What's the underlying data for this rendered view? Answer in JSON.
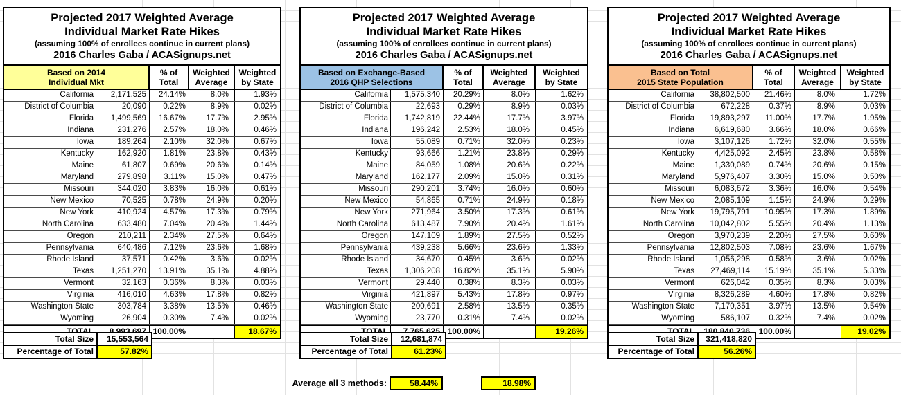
{
  "shared": {
    "title_line1": "Projected 2017 Weighted Average",
    "title_line2": "Individual Market Rate Hikes",
    "title_line3": "(assuming 100% of enrollees continue in current plans)",
    "title_line4": "2016 Charles Gaba / ACASignups.net",
    "col_pct_1": "% of",
    "col_pct_2": "Total",
    "col_wavg_1": "Weighted",
    "col_wavg_2": "Average",
    "col_wstate_1": "Weighted",
    "col_wstate_2": "by State",
    "total_label": "TOTAL",
    "total_size_label": "Total Size",
    "pct_of_total_label": "Percentage of Total",
    "colors": {
      "table1_header_bg": "#FFFF99",
      "table2_header_bg": "#9CC2E5",
      "table3_header_bg": "#FAC090",
      "highlight": "#FFFF00"
    }
  },
  "tables": [
    {
      "method_line1": "Based on 2014",
      "method_line2": "Individual Mkt",
      "rows": [
        {
          "state": "California",
          "size": "2,171,525",
          "pct": "24.14%",
          "wavg": "8.0%",
          "wstate": "1.93%"
        },
        {
          "state": "District of Columbia",
          "size": "20,090",
          "pct": "0.22%",
          "wavg": "8.9%",
          "wstate": "0.02%"
        },
        {
          "state": "Florida",
          "size": "1,499,569",
          "pct": "16.67%",
          "wavg": "17.7%",
          "wstate": "2.95%"
        },
        {
          "state": "Indiana",
          "size": "231,276",
          "pct": "2.57%",
          "wavg": "18.0%",
          "wstate": "0.46%"
        },
        {
          "state": "Iowa",
          "size": "189,264",
          "pct": "2.10%",
          "wavg": "32.0%",
          "wstate": "0.67%"
        },
        {
          "state": "Kentucky",
          "size": "162,920",
          "pct": "1.81%",
          "wavg": "23.8%",
          "wstate": "0.43%"
        },
        {
          "state": "Maine",
          "size": "61,807",
          "pct": "0.69%",
          "wavg": "20.6%",
          "wstate": "0.14%"
        },
        {
          "state": "Maryland",
          "size": "279,898",
          "pct": "3.11%",
          "wavg": "15.0%",
          "wstate": "0.47%"
        },
        {
          "state": "Missouri",
          "size": "344,020",
          "pct": "3.83%",
          "wavg": "16.0%",
          "wstate": "0.61%"
        },
        {
          "state": "New Mexico",
          "size": "70,525",
          "pct": "0.78%",
          "wavg": "24.9%",
          "wstate": "0.20%"
        },
        {
          "state": "New York",
          "size": "410,924",
          "pct": "4.57%",
          "wavg": "17.3%",
          "wstate": "0.79%"
        },
        {
          "state": "North Carolina",
          "size": "633,480",
          "pct": "7.04%",
          "wavg": "20.4%",
          "wstate": "1.44%"
        },
        {
          "state": "Oregon",
          "size": "210,211",
          "pct": "2.34%",
          "wavg": "27.5%",
          "wstate": "0.64%"
        },
        {
          "state": "Pennsylvania",
          "size": "640,486",
          "pct": "7.12%",
          "wavg": "23.6%",
          "wstate": "1.68%"
        },
        {
          "state": "Rhode Island",
          "size": "37,571",
          "pct": "0.42%",
          "wavg": "3.6%",
          "wstate": "0.02%"
        },
        {
          "state": "Texas",
          "size": "1,251,270",
          "pct": "13.91%",
          "wavg": "35.1%",
          "wstate": "4.88%"
        },
        {
          "state": "Vermont",
          "size": "32,163",
          "pct": "0.36%",
          "wavg": "8.3%",
          "wstate": "0.03%"
        },
        {
          "state": "Virginia",
          "size": "416,010",
          "pct": "4.63%",
          "wavg": "17.8%",
          "wstate": "0.82%"
        },
        {
          "state": "Washington State",
          "size": "303,784",
          "pct": "3.38%",
          "wavg": "13.5%",
          "wstate": "0.46%"
        },
        {
          "state": "Wyoming",
          "size": "26,904",
          "pct": "0.30%",
          "wavg": "7.4%",
          "wstate": "0.02%"
        }
      ],
      "total": {
        "size": "8,993,697",
        "pct": "100.00%",
        "wstate": "18.67%"
      },
      "footer": {
        "total_size": "15,553,564",
        "pct_of_total": "57.82%"
      }
    },
    {
      "method_line1": "Based on Exchange-Based",
      "method_line2": "2016 QHP Selections",
      "rows": [
        {
          "state": "California",
          "size": "1,575,340",
          "pct": "20.29%",
          "wavg": "8.0%",
          "wstate": "1.62%"
        },
        {
          "state": "District of Columbia",
          "size": "22,693",
          "pct": "0.29%",
          "wavg": "8.9%",
          "wstate": "0.03%"
        },
        {
          "state": "Florida",
          "size": "1,742,819",
          "pct": "22.44%",
          "wavg": "17.7%",
          "wstate": "3.97%"
        },
        {
          "state": "Indiana",
          "size": "196,242",
          "pct": "2.53%",
          "wavg": "18.0%",
          "wstate": "0.45%"
        },
        {
          "state": "Iowa",
          "size": "55,089",
          "pct": "0.71%",
          "wavg": "32.0%",
          "wstate": "0.23%"
        },
        {
          "state": "Kentucky",
          "size": "93,666",
          "pct": "1.21%",
          "wavg": "23.8%",
          "wstate": "0.29%"
        },
        {
          "state": "Maine",
          "size": "84,059",
          "pct": "1.08%",
          "wavg": "20.6%",
          "wstate": "0.22%"
        },
        {
          "state": "Maryland",
          "size": "162,177",
          "pct": "2.09%",
          "wavg": "15.0%",
          "wstate": "0.31%"
        },
        {
          "state": "Missouri",
          "size": "290,201",
          "pct": "3.74%",
          "wavg": "16.0%",
          "wstate": "0.60%"
        },
        {
          "state": "New Mexico",
          "size": "54,865",
          "pct": "0.71%",
          "wavg": "24.9%",
          "wstate": "0.18%"
        },
        {
          "state": "New York",
          "size": "271,964",
          "pct": "3.50%",
          "wavg": "17.3%",
          "wstate": "0.61%"
        },
        {
          "state": "North Carolina",
          "size": "613,487",
          "pct": "7.90%",
          "wavg": "20.4%",
          "wstate": "1.61%"
        },
        {
          "state": "Oregon",
          "size": "147,109",
          "pct": "1.89%",
          "wavg": "27.5%",
          "wstate": "0.52%"
        },
        {
          "state": "Pennsylvania",
          "size": "439,238",
          "pct": "5.66%",
          "wavg": "23.6%",
          "wstate": "1.33%"
        },
        {
          "state": "Rhode Island",
          "size": "34,670",
          "pct": "0.45%",
          "wavg": "3.6%",
          "wstate": "0.02%"
        },
        {
          "state": "Texas",
          "size": "1,306,208",
          "pct": "16.82%",
          "wavg": "35.1%",
          "wstate": "5.90%"
        },
        {
          "state": "Vermont",
          "size": "29,440",
          "pct": "0.38%",
          "wavg": "8.3%",
          "wstate": "0.03%"
        },
        {
          "state": "Virginia",
          "size": "421,897",
          "pct": "5.43%",
          "wavg": "17.8%",
          "wstate": "0.97%"
        },
        {
          "state": "Washington State",
          "size": "200,691",
          "pct": "2.58%",
          "wavg": "13.5%",
          "wstate": "0.35%"
        },
        {
          "state": "Wyoming",
          "size": "23,770",
          "pct": "0.31%",
          "wavg": "7.4%",
          "wstate": "0.02%"
        }
      ],
      "total": {
        "size": "7,765,625",
        "pct": "100.00%",
        "wstate": "19.26%"
      },
      "footer": {
        "total_size": "12,681,874",
        "pct_of_total": "61.23%"
      }
    },
    {
      "method_line1": "Based on Total",
      "method_line2": "2015 State Population",
      "rows": [
        {
          "state": "California",
          "size": "38,802,500",
          "pct": "21.46%",
          "wavg": "8.0%",
          "wstate": "1.72%"
        },
        {
          "state": "District of Columbia",
          "size": "672,228",
          "pct": "0.37%",
          "wavg": "8.9%",
          "wstate": "0.03%"
        },
        {
          "state": "Florida",
          "size": "19,893,297",
          "pct": "11.00%",
          "wavg": "17.7%",
          "wstate": "1.95%"
        },
        {
          "state": "Indiana",
          "size": "6,619,680",
          "pct": "3.66%",
          "wavg": "18.0%",
          "wstate": "0.66%"
        },
        {
          "state": "Iowa",
          "size": "3,107,126",
          "pct": "1.72%",
          "wavg": "32.0%",
          "wstate": "0.55%"
        },
        {
          "state": "Kentucky",
          "size": "4,425,092",
          "pct": "2.45%",
          "wavg": "23.8%",
          "wstate": "0.58%"
        },
        {
          "state": "Maine",
          "size": "1,330,089",
          "pct": "0.74%",
          "wavg": "20.6%",
          "wstate": "0.15%"
        },
        {
          "state": "Maryland",
          "size": "5,976,407",
          "pct": "3.30%",
          "wavg": "15.0%",
          "wstate": "0.50%"
        },
        {
          "state": "Missouri",
          "size": "6,083,672",
          "pct": "3.36%",
          "wavg": "16.0%",
          "wstate": "0.54%"
        },
        {
          "state": "New Mexico",
          "size": "2,085,109",
          "pct": "1.15%",
          "wavg": "24.9%",
          "wstate": "0.29%"
        },
        {
          "state": "New York",
          "size": "19,795,791",
          "pct": "10.95%",
          "wavg": "17.3%",
          "wstate": "1.89%"
        },
        {
          "state": "North Carolina",
          "size": "10,042,802",
          "pct": "5.55%",
          "wavg": "20.4%",
          "wstate": "1.13%"
        },
        {
          "state": "Oregon",
          "size": "3,970,239",
          "pct": "2.20%",
          "wavg": "27.5%",
          "wstate": "0.60%"
        },
        {
          "state": "Pennsylvania",
          "size": "12,802,503",
          "pct": "7.08%",
          "wavg": "23.6%",
          "wstate": "1.67%"
        },
        {
          "state": "Rhode Island",
          "size": "1,056,298",
          "pct": "0.58%",
          "wavg": "3.6%",
          "wstate": "0.02%"
        },
        {
          "state": "Texas",
          "size": "27,469,114",
          "pct": "15.19%",
          "wavg": "35.1%",
          "wstate": "5.33%"
        },
        {
          "state": "Vermont",
          "size": "626,042",
          "pct": "0.35%",
          "wavg": "8.3%",
          "wstate": "0.03%"
        },
        {
          "state": "Virginia",
          "size": "8,326,289",
          "pct": "4.60%",
          "wavg": "17.8%",
          "wstate": "0.82%"
        },
        {
          "state": "Washington State",
          "size": "7,170,351",
          "pct": "3.97%",
          "wavg": "13.5%",
          "wstate": "0.54%"
        },
        {
          "state": "Wyoming",
          "size": "586,107",
          "pct": "0.32%",
          "wavg": "7.4%",
          "wstate": "0.02%"
        }
      ],
      "total": {
        "size": "180,840,736",
        "pct": "100.00%",
        "wstate": "19.02%"
      },
      "footer": {
        "total_size": "321,418,820",
        "pct_of_total": "56.26%"
      }
    }
  ],
  "average_row": {
    "label": "Average all 3 methods:",
    "pct_of_total_avg": "58.44%",
    "weighted_avg": "18.98%"
  }
}
